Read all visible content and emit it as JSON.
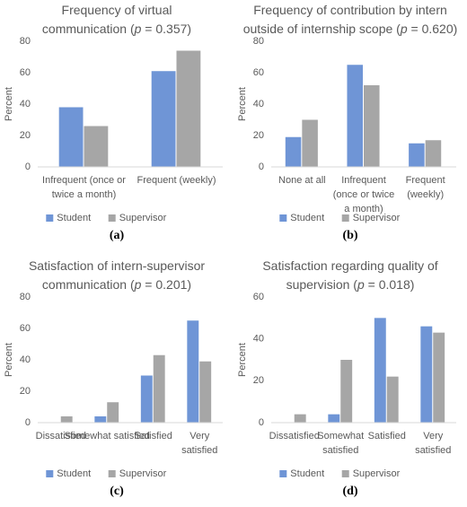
{
  "chart_data": [
    {
      "type": "bar",
      "label": "(a)",
      "title": [
        "Frequency of virtual",
        "communication (p = 0.357)"
      ],
      "ylabel": "Percent",
      "categories": [
        [
          "Infrequent (once or",
          "twice a month)"
        ],
        [
          "Frequent (weekly)"
        ]
      ],
      "series": [
        {
          "name": "Student",
          "color": "#6f95d6",
          "values": [
            38,
            61
          ]
        },
        {
          "name": "Supervisor",
          "color": "#a6a6a6",
          "values": [
            26,
            74
          ]
        }
      ],
      "ylim": [
        0,
        80
      ],
      "yticks": [
        0,
        20,
        40,
        60,
        80
      ]
    },
    {
      "type": "bar",
      "label": "(b)",
      "title": [
        "Frequency of contribution by intern",
        "outside of internship scope (p = 0.620)"
      ],
      "ylabel": "Percent",
      "categories": [
        [
          "None at all"
        ],
        [
          "Infrequent",
          "(once or twice",
          "a month)"
        ],
        [
          "Frequent",
          "(weekly)"
        ]
      ],
      "series": [
        {
          "name": "Student",
          "color": "#6f95d6",
          "values": [
            19,
            65,
            15
          ]
        },
        {
          "name": "Supervisor",
          "color": "#a6a6a6",
          "values": [
            30,
            52,
            17
          ]
        }
      ],
      "ylim": [
        0,
        80
      ],
      "yticks": [
        0,
        20,
        40,
        60,
        80
      ]
    },
    {
      "type": "bar",
      "label": "(c)",
      "title": [
        "Satisfaction of intern-supervisor",
        "communication (p = 0.201)"
      ],
      "ylabel": "Percent",
      "categories": [
        [
          "Dissatisfied"
        ],
        [
          "Somewhat satisfied"
        ],
        [
          "Satisfied"
        ],
        [
          "Very",
          "satisfied"
        ]
      ],
      "series": [
        {
          "name": "Student",
          "color": "#6f95d6",
          "values": [
            0,
            4,
            30,
            65
          ]
        },
        {
          "name": "Supervisor",
          "color": "#a6a6a6",
          "values": [
            4,
            13,
            43,
            39
          ]
        }
      ],
      "ylim": [
        0,
        80
      ],
      "yticks": [
        0,
        20,
        40,
        60,
        80
      ]
    },
    {
      "type": "bar",
      "label": "(d)",
      "title": [
        "Satisfaction regarding quality of",
        "supervision (p = 0.018)"
      ],
      "ylabel": "Percent",
      "categories": [
        [
          "Dissatisfied"
        ],
        [
          "Somewhat",
          "satisfied"
        ],
        [
          "Satisfied"
        ],
        [
          "Very",
          "satisfied"
        ]
      ],
      "series": [
        {
          "name": "Student",
          "color": "#6f95d6",
          "values": [
            0,
            4,
            50,
            46
          ]
        },
        {
          "name": "Supervisor",
          "color": "#a6a6a6",
          "values": [
            4,
            30,
            22,
            43
          ]
        }
      ],
      "ylim": [
        0,
        60
      ],
      "yticks": [
        0,
        20,
        40,
        60
      ]
    }
  ]
}
